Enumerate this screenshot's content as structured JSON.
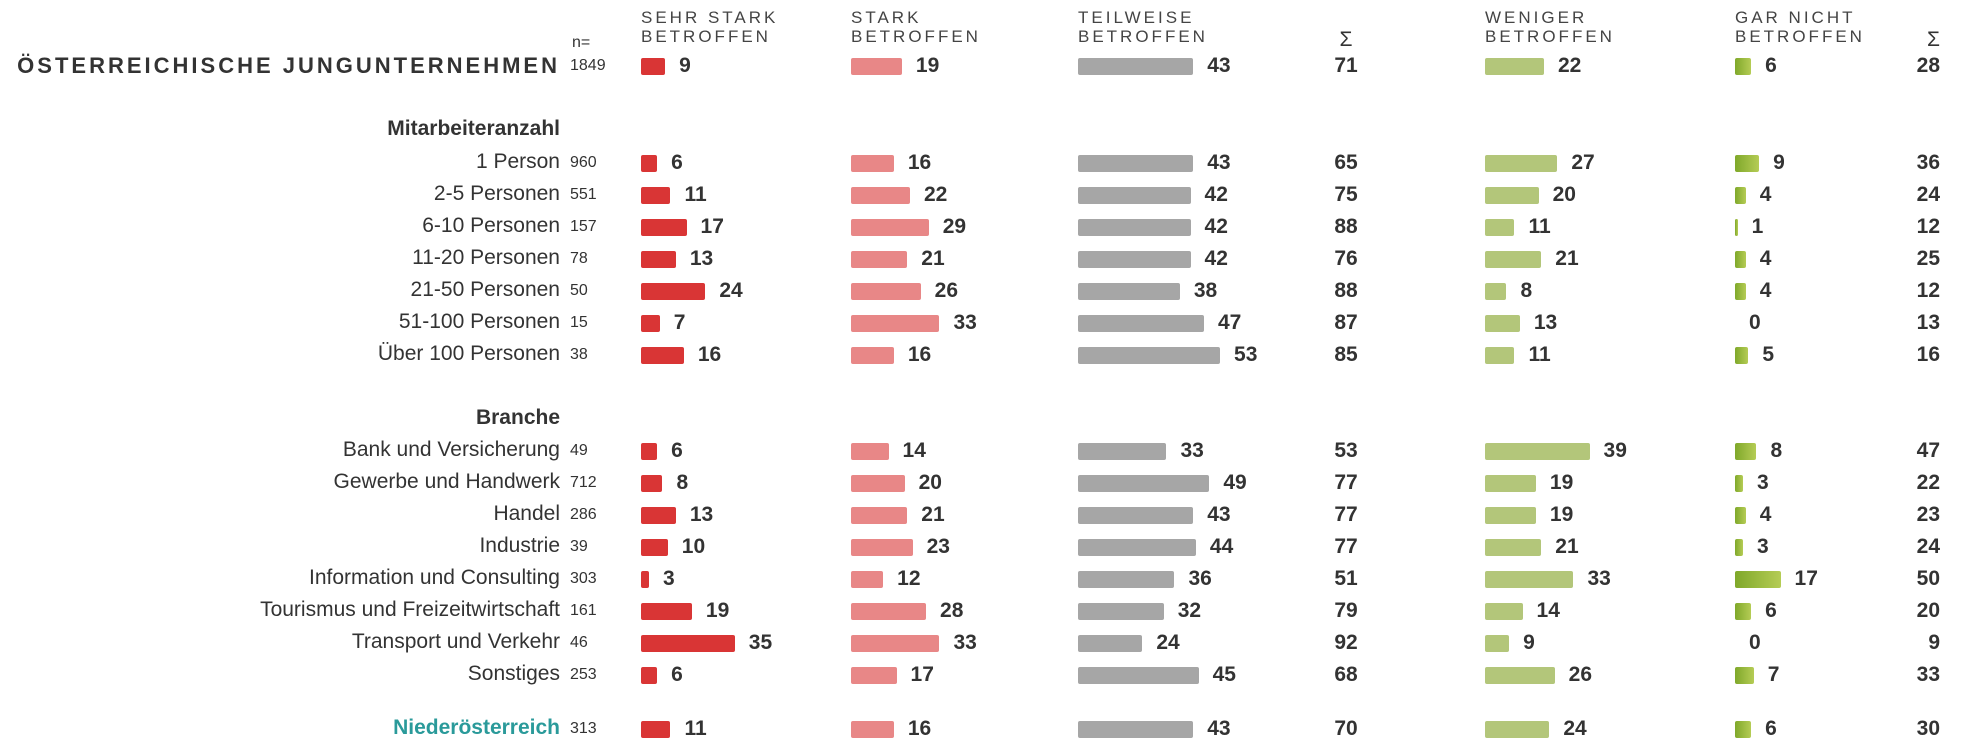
{
  "chart_data": {
    "type": "bar",
    "n_label": "n=",
    "sum_label": "Σ",
    "series": [
      {
        "name": "SEHR STARK\nBETROFFEN",
        "color": "#d93535"
      },
      {
        "name": "STARK\nBETROFFEN",
        "color": "#e88787"
      },
      {
        "name": "TEILWEISE\nBETROFFEN",
        "color": "#a6a6a6"
      },
      {
        "name": "WENIGER\nBETROFFEN",
        "color": "#b3c67a"
      },
      {
        "name": "GAR NICHT\nBETROFFEN",
        "color": "#7fa82a"
      }
    ],
    "total": {
      "label": "ÖSTERREICHISCHE JUNGUNTERNEHMEN",
      "n": 1849,
      "values": [
        9,
        19,
        43,
        22,
        6
      ],
      "sums": [
        71,
        28
      ]
    },
    "groups": [
      {
        "title": "Mitarbeiteranzahl",
        "rows": [
          {
            "label": "1 Person",
            "n": 960,
            "values": [
              6,
              16,
              43,
              27,
              9
            ],
            "sums": [
              65,
              36
            ]
          },
          {
            "label": "2-5 Personen",
            "n": 551,
            "values": [
              11,
              22,
              42,
              20,
              4
            ],
            "sums": [
              75,
              24
            ]
          },
          {
            "label": "6-10 Personen",
            "n": 157,
            "values": [
              17,
              29,
              42,
              11,
              1
            ],
            "sums": [
              88,
              12
            ]
          },
          {
            "label": "11-20 Personen",
            "n": 78,
            "values": [
              13,
              21,
              42,
              21,
              4
            ],
            "sums": [
              76,
              25
            ]
          },
          {
            "label": "21-50 Personen",
            "n": 50,
            "values": [
              24,
              26,
              38,
              8,
              4
            ],
            "sums": [
              88,
              12
            ]
          },
          {
            "label": "51-100 Personen",
            "n": 15,
            "values": [
              7,
              33,
              47,
              13,
              0
            ],
            "sums": [
              87,
              13
            ]
          },
          {
            "label": "Über 100 Personen",
            "n": 38,
            "values": [
              16,
              16,
              53,
              11,
              5
            ],
            "sums": [
              85,
              16
            ]
          }
        ]
      },
      {
        "title": "Branche",
        "rows": [
          {
            "label": "Bank und Versicherung",
            "n": 49,
            "values": [
              6,
              14,
              33,
              39,
              8
            ],
            "sums": [
              53,
              47
            ]
          },
          {
            "label": "Gewerbe und Handwerk",
            "n": 712,
            "values": [
              8,
              20,
              49,
              19,
              3
            ],
            "sums": [
              77,
              22
            ]
          },
          {
            "label": "Handel",
            "n": 286,
            "values": [
              13,
              21,
              43,
              19,
              4
            ],
            "sums": [
              77,
              23
            ]
          },
          {
            "label": "Industrie",
            "n": 39,
            "values": [
              10,
              23,
              44,
              21,
              3
            ],
            "sums": [
              77,
              24
            ]
          },
          {
            "label": "Information und Consulting",
            "n": 303,
            "values": [
              3,
              12,
              36,
              33,
              17
            ],
            "sums": [
              51,
              50
            ]
          },
          {
            "label": "Tourismus und Freizeitwirtschaft",
            "n": 161,
            "values": [
              19,
              28,
              32,
              14,
              6
            ],
            "sums": [
              79,
              20
            ]
          },
          {
            "label": "Transport und Verkehr",
            "n": 46,
            "values": [
              35,
              33,
              24,
              9,
              0
            ],
            "sums": [
              92,
              9
            ]
          },
          {
            "label": "Sonstiges",
            "n": 253,
            "values": [
              6,
              17,
              45,
              26,
              7
            ],
            "sums": [
              68,
              33
            ]
          }
        ]
      }
    ],
    "region": {
      "label": "Niederösterreich",
      "n": 313,
      "values": [
        11,
        16,
        43,
        24,
        6
      ],
      "sums": [
        70,
        30
      ]
    }
  }
}
